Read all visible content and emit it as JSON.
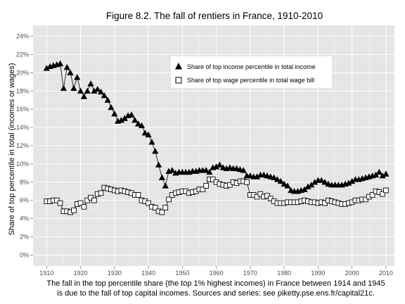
{
  "chart_data": {
    "type": "line",
    "title": "Figure 8.2. The fall of rentiers in France, 1910-2010",
    "xlabel": "",
    "ylabel": "Share of top percentile in total (incomes or wages)",
    "xlim": [
      1906,
      2012.5
    ],
    "ylim": [
      -0.012,
      0.252
    ],
    "x_ticks": [
      1910,
      1920,
      1930,
      1940,
      1950,
      1960,
      1970,
      1980,
      1990,
      2000,
      2010
    ],
    "y_ticks": [
      0,
      0.02,
      0.04,
      0.06,
      0.08,
      0.1,
      0.12,
      0.14,
      0.16,
      0.18,
      0.2,
      0.22,
      0.24
    ],
    "y_tick_labels": [
      "0%",
      "2%",
      "4%",
      "6%",
      "8%",
      "10%",
      "12%",
      "14%",
      "16%",
      "18%",
      "20%",
      "22%",
      "24%"
    ],
    "grid": true,
    "legend_position": "top-right",
    "series": [
      {
        "name": "Share of top income percentile in total income",
        "marker": "filled-triangle",
        "x": [
          1910,
          1911,
          1912,
          1913,
          1914,
          1915,
          1916,
          1917,
          1918,
          1919,
          1920,
          1921,
          1922,
          1923,
          1924,
          1925,
          1926,
          1927,
          1928,
          1929,
          1930,
          1931,
          1932,
          1933,
          1934,
          1935,
          1936,
          1937,
          1938,
          1939,
          1940,
          1941,
          1942,
          1943,
          1944,
          1945,
          1946,
          1947,
          1948,
          1949,
          1950,
          1951,
          1952,
          1953,
          1954,
          1955,
          1956,
          1957,
          1958,
          1959,
          1960,
          1961,
          1962,
          1963,
          1964,
          1965,
          1966,
          1967,
          1968,
          1969,
          1970,
          1971,
          1972,
          1973,
          1974,
          1975,
          1976,
          1977,
          1978,
          1979,
          1980,
          1981,
          1982,
          1983,
          1984,
          1985,
          1986,
          1987,
          1988,
          1989,
          1990,
          1991,
          1992,
          1993,
          1994,
          1995,
          1996,
          1997,
          1998,
          1999,
          2000,
          2001,
          2002,
          2003,
          2004,
          2005,
          2006,
          2007,
          2008,
          2009,
          2010
        ],
        "y": [
          0.205,
          0.207,
          0.208,
          0.209,
          0.21,
          0.183,
          0.206,
          0.2,
          0.183,
          0.195,
          0.18,
          0.174,
          0.18,
          0.188,
          0.18,
          0.182,
          0.179,
          0.175,
          0.17,
          0.162,
          0.155,
          0.147,
          0.148,
          0.15,
          0.153,
          0.154,
          0.148,
          0.144,
          0.142,
          0.134,
          0.132,
          0.124,
          0.114,
          0.099,
          0.085,
          0.076,
          0.092,
          0.093,
          0.09,
          0.091,
          0.091,
          0.091,
          0.091,
          0.092,
          0.092,
          0.093,
          0.093,
          0.093,
          0.091,
          0.096,
          0.097,
          0.099,
          0.096,
          0.095,
          0.096,
          0.095,
          0.095,
          0.094,
          0.093,
          0.087,
          0.087,
          0.086,
          0.086,
          0.088,
          0.088,
          0.087,
          0.086,
          0.085,
          0.083,
          0.081,
          0.078,
          0.076,
          0.071,
          0.07,
          0.07,
          0.071,
          0.072,
          0.075,
          0.077,
          0.08,
          0.082,
          0.082,
          0.08,
          0.078,
          0.077,
          0.077,
          0.077,
          0.077,
          0.078,
          0.079,
          0.081,
          0.083,
          0.083,
          0.084,
          0.085,
          0.086,
          0.087,
          0.088,
          0.091,
          0.087,
          0.089
        ]
      },
      {
        "name": "Share of top wage percentile in total wage bill",
        "marker": "hollow-square",
        "x": [
          1910,
          1911,
          1912,
          1913,
          1914,
          1915,
          1916,
          1917,
          1918,
          1919,
          1920,
          1921,
          1922,
          1923,
          1924,
          1925,
          1926,
          1927,
          1928,
          1929,
          1930,
          1931,
          1932,
          1933,
          1934,
          1935,
          1936,
          1937,
          1938,
          1939,
          1940,
          1941,
          1942,
          1943,
          1944,
          1945,
          1946,
          1947,
          1948,
          1949,
          1950,
          1951,
          1952,
          1953,
          1954,
          1955,
          1956,
          1957,
          1958,
          1959,
          1960,
          1961,
          1962,
          1963,
          1964,
          1965,
          1966,
          1967,
          1968,
          1969,
          1970,
          1971,
          1972,
          1973,
          1974,
          1975,
          1976,
          1977,
          1978,
          1979,
          1980,
          1981,
          1982,
          1983,
          1984,
          1985,
          1986,
          1987,
          1988,
          1989,
          1990,
          1991,
          1992,
          1993,
          1994,
          1995,
          1996,
          1997,
          1998,
          1999,
          2000,
          2001,
          2002,
          2003,
          2004,
          2005,
          2006,
          2007,
          2008,
          2009,
          2010
        ],
        "y": [
          0.059,
          0.059,
          0.06,
          0.06,
          0.057,
          0.048,
          0.048,
          0.047,
          0.049,
          0.056,
          0.057,
          0.053,
          0.06,
          0.063,
          0.06,
          0.067,
          0.068,
          0.074,
          0.073,
          0.072,
          0.071,
          0.07,
          0.071,
          0.07,
          0.069,
          0.068,
          0.066,
          0.066,
          0.06,
          0.059,
          0.057,
          0.053,
          0.052,
          0.048,
          0.047,
          0.052,
          0.061,
          0.066,
          0.068,
          0.069,
          0.07,
          0.07,
          0.068,
          0.069,
          0.07,
          0.072,
          0.072,
          0.076,
          0.083,
          0.083,
          0.08,
          0.078,
          0.077,
          0.076,
          0.077,
          0.08,
          0.079,
          0.081,
          0.081,
          0.08,
          0.066,
          0.066,
          0.064,
          0.067,
          0.064,
          0.065,
          0.062,
          0.059,
          0.057,
          0.057,
          0.057,
          0.058,
          0.058,
          0.058,
          0.058,
          0.059,
          0.06,
          0.059,
          0.058,
          0.058,
          0.057,
          0.058,
          0.057,
          0.06,
          0.059,
          0.058,
          0.057,
          0.056,
          0.056,
          0.057,
          0.058,
          0.06,
          0.06,
          0.061,
          0.061,
          0.064,
          0.066,
          0.07,
          0.069,
          0.067,
          0.071
        ]
      }
    ],
    "caption_lines": [
      "The fall in the top percentile share (the top 1% highest incomes) in France between 1914 and 1945",
      "is due to the fall of top capital incomes. Sources and series: see piketty.pse.ens.fr/capital21c."
    ]
  },
  "colors": {
    "panel_background": "#e5e5e5",
    "grid_major": "#ffffff",
    "grid_minor": "#f2f2f2",
    "ink": "#000000",
    "tick_text": "#4d4d4d",
    "legend_background": "#ffffff"
  }
}
